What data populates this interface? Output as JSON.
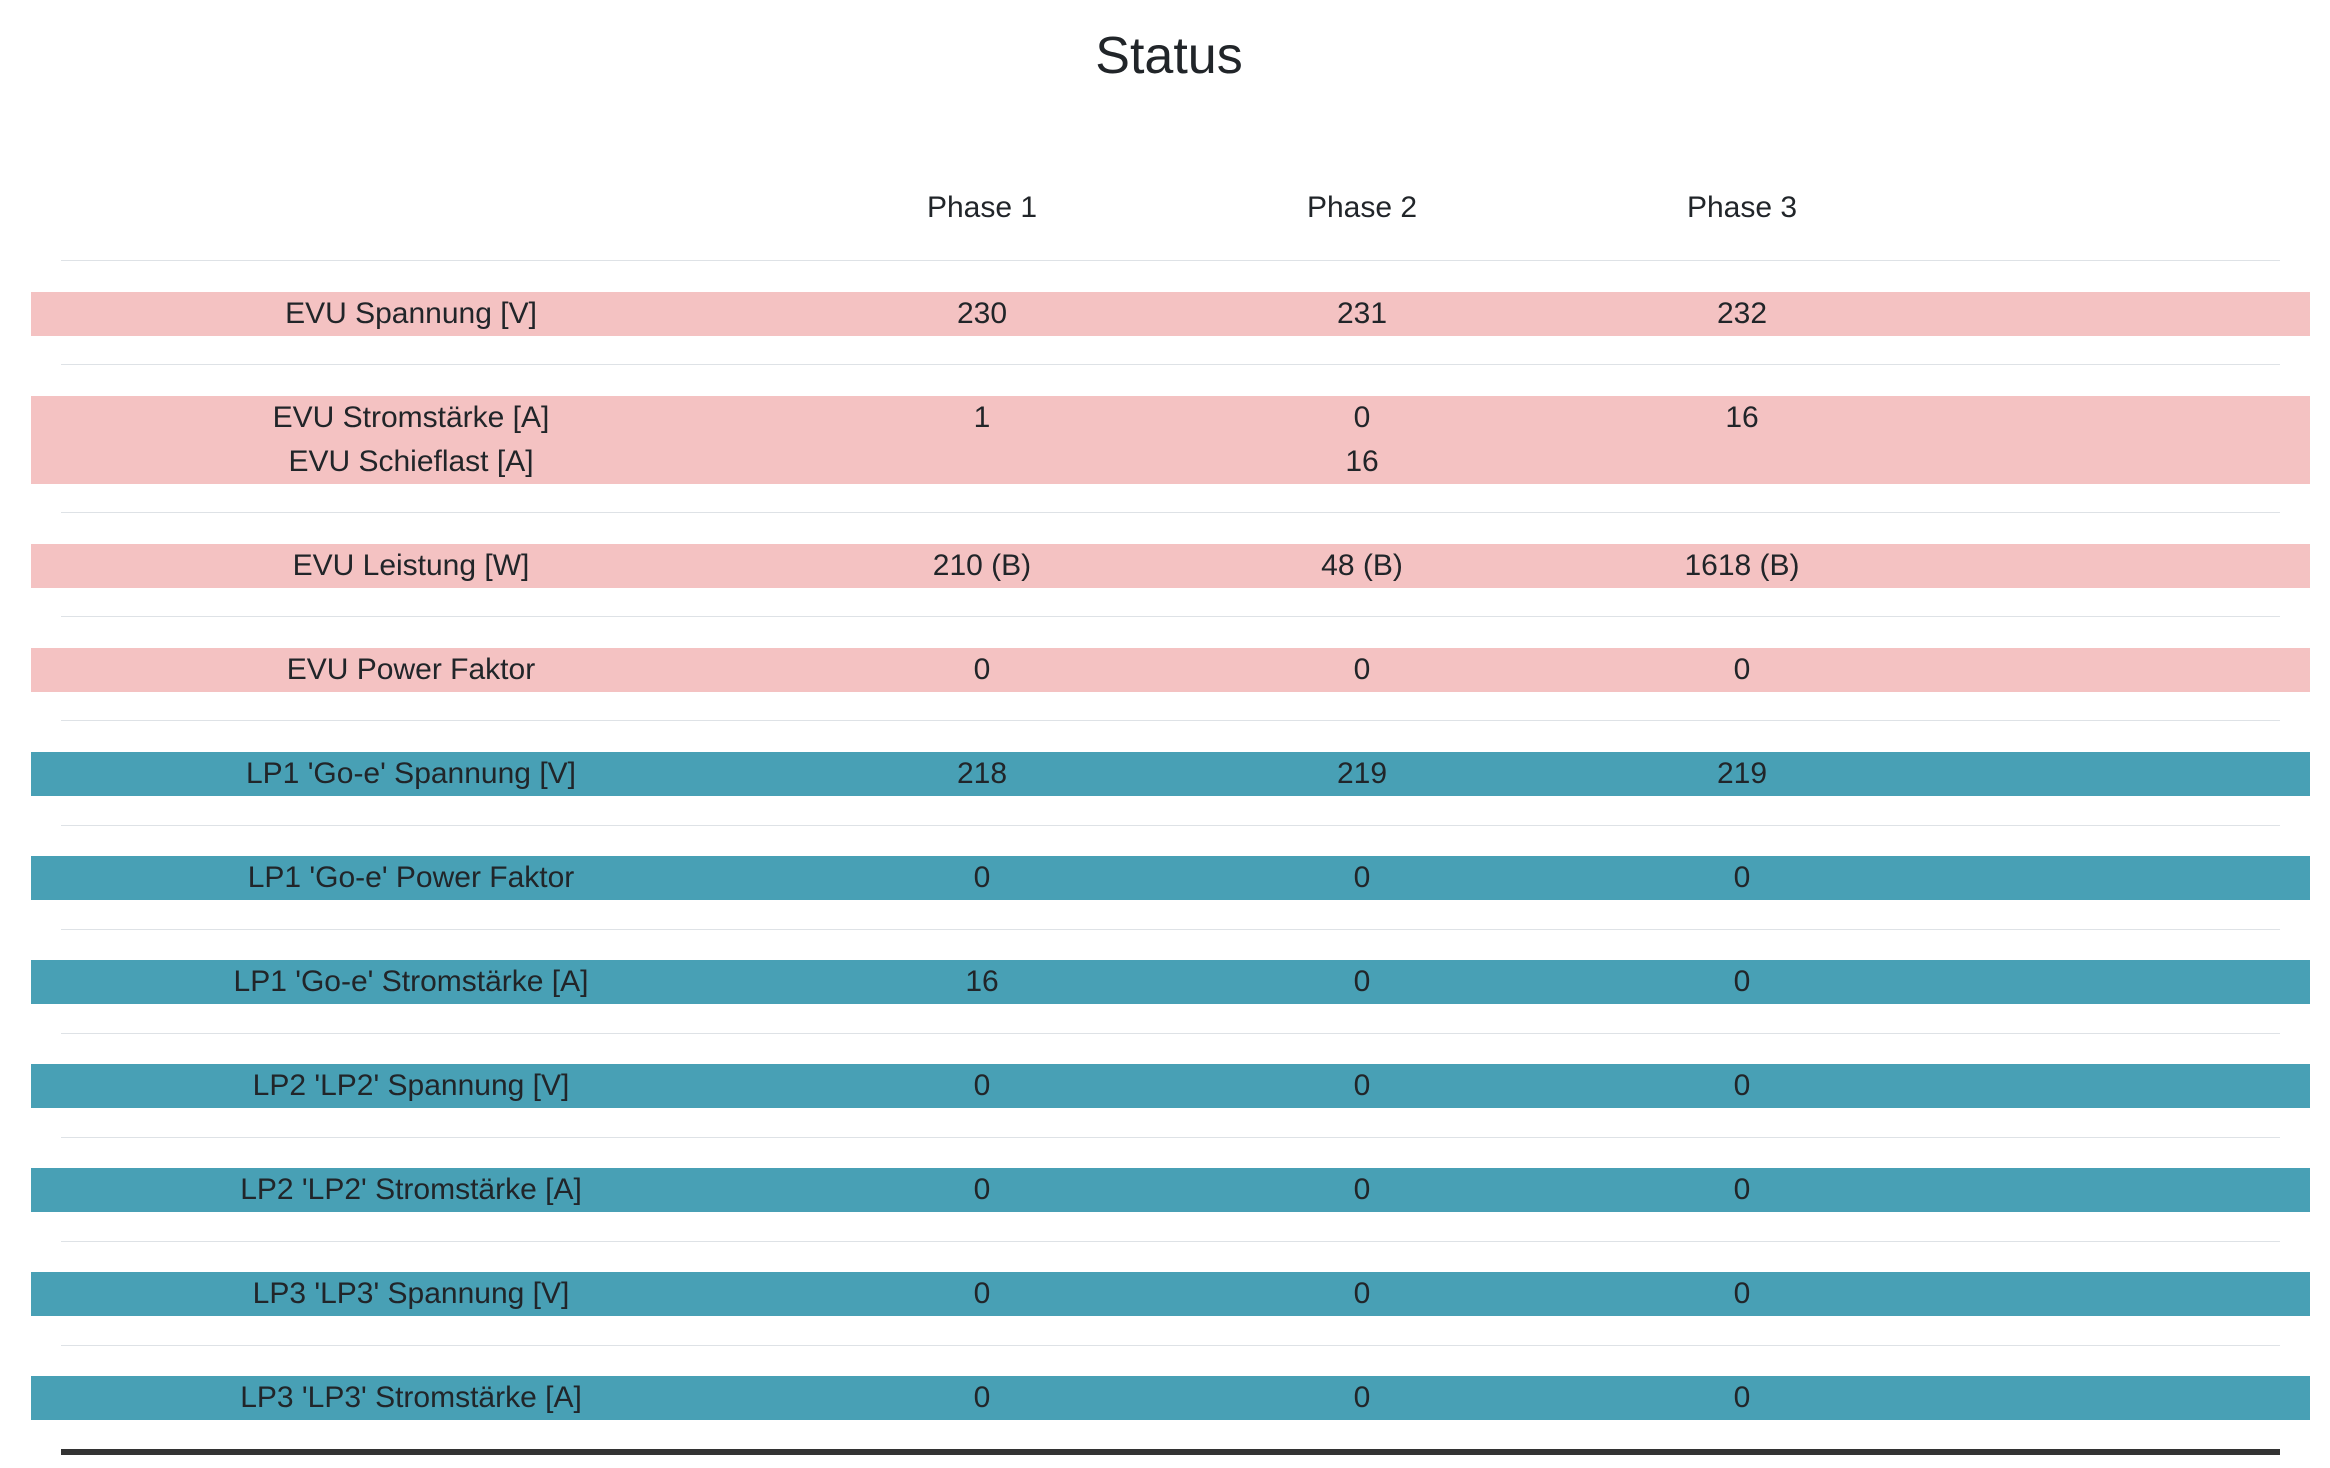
{
  "title": "Status",
  "header": {
    "col0": "",
    "col1": "Phase 1",
    "col2": "Phase 2",
    "col3": "Phase 3"
  },
  "colors": {
    "evu_row": "#f4c2c2",
    "lp_row": "#48a0b5",
    "separator": "#dee2e6",
    "bottom_rule": "#333333"
  },
  "rows": [
    {
      "group": "evu",
      "label": "EVU Spannung [V]",
      "p1": "230",
      "p2": "231",
      "p3": "232"
    },
    {
      "group": "evu",
      "label": "EVU Stromstärke [A]",
      "p1": "1",
      "p2": "0",
      "p3": "16",
      "sub_label": "EVU Schieflast [A]",
      "sub_value": "16"
    },
    {
      "group": "evu",
      "label": "EVU Leistung [W]",
      "p1": "210 (B)",
      "p2": "48 (B)",
      "p3": "1618 (B)"
    },
    {
      "group": "evu",
      "label": "EVU Power Faktor",
      "p1": "0",
      "p2": "0",
      "p3": "0"
    },
    {
      "group": "lp",
      "label": "LP1 'Go-e' Spannung [V]",
      "p1": "218",
      "p2": "219",
      "p3": "219"
    },
    {
      "group": "lp",
      "label": "LP1 'Go-e' Power Faktor",
      "p1": "0",
      "p2": "0",
      "p3": "0"
    },
    {
      "group": "lp",
      "label": "LP1 'Go-e' Stromstärke [A]",
      "p1": "16",
      "p2": "0",
      "p3": "0"
    },
    {
      "group": "lp",
      "label": "LP2 'LP2' Spannung [V]",
      "p1": "0",
      "p2": "0",
      "p3": "0"
    },
    {
      "group": "lp",
      "label": "LP2 'LP2' Stromstärke [A]",
      "p1": "0",
      "p2": "0",
      "p3": "0"
    },
    {
      "group": "lp",
      "label": "LP3 'LP3' Spannung [V]",
      "p1": "0",
      "p2": "0",
      "p3": "0"
    },
    {
      "group": "lp",
      "label": "LP3 'LP3' Stromstärke [A]",
      "p1": "0",
      "p2": "0",
      "p3": "0"
    }
  ]
}
